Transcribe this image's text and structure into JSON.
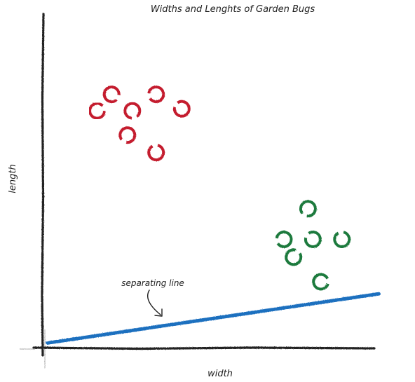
{
  "chart_data": {
    "type": "scatter",
    "title": "Widths and Lenghts of Garden Bugs",
    "xlabel": "width",
    "ylabel": "length",
    "xlim": [
      0,
      10
    ],
    "ylim": [
      0,
      10
    ],
    "grid": false,
    "series": [
      {
        "color": "#c41e2e",
        "points": [
          {
            "x": 1.65,
            "y": 7.06
          },
          {
            "x": 2.09,
            "y": 7.55
          },
          {
            "x": 2.72,
            "y": 7.06
          },
          {
            "x": 2.57,
            "y": 6.34
          },
          {
            "x": 3.44,
            "y": 7.55
          },
          {
            "x": 4.22,
            "y": 7.12
          },
          {
            "x": 3.44,
            "y": 5.82
          }
        ]
      },
      {
        "color": "#1f7a3c",
        "points": [
          {
            "x": 8.05,
            "y": 4.15
          },
          {
            "x": 7.32,
            "y": 3.24
          },
          {
            "x": 8.2,
            "y": 3.24
          },
          {
            "x": 9.08,
            "y": 3.24
          },
          {
            "x": 7.61,
            "y": 2.71
          },
          {
            "x": 8.44,
            "y": 1.98
          }
        ]
      }
    ],
    "separating_line": {
      "label": "separating line",
      "color": "#1f6fbf",
      "x": [
        0.15,
        10.2
      ],
      "y": [
        0.16,
        1.62
      ]
    }
  }
}
